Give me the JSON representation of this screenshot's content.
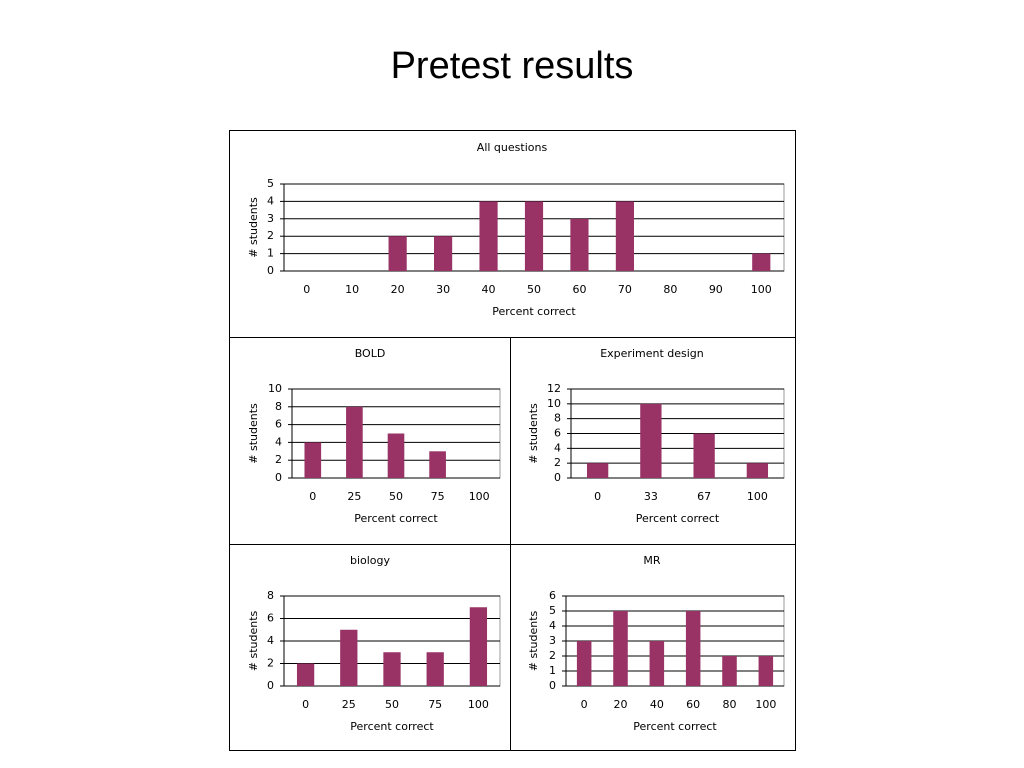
{
  "title": "Pretest results",
  "chart_data": [
    {
      "type": "bar",
      "title": "All questions",
      "xlabel": "Percent correct",
      "ylabel": "# students",
      "categories": [
        "0",
        "10",
        "20",
        "30",
        "40",
        "50",
        "60",
        "70",
        "80",
        "90",
        "100"
      ],
      "values": [
        0,
        0,
        2,
        2,
        4,
        4,
        3,
        4,
        0,
        0,
        1
      ],
      "color": "#993366",
      "ylim": [
        0,
        5
      ],
      "yticks": [
        0,
        1,
        2,
        3,
        4,
        5
      ],
      "grid": true
    },
    {
      "type": "bar",
      "title": "BOLD",
      "xlabel": "Percent correct",
      "ylabel": "# students",
      "categories": [
        "0",
        "25",
        "50",
        "75",
        "100"
      ],
      "values": [
        4,
        8,
        5,
        3,
        0
      ],
      "color": "#993366",
      "ylim": [
        0,
        10
      ],
      "yticks": [
        0,
        2,
        4,
        6,
        8,
        10
      ],
      "grid": true
    },
    {
      "type": "bar",
      "title": "Experiment design",
      "xlabel": "Percent correct",
      "ylabel": "# students",
      "categories": [
        "0",
        "33",
        "67",
        "100"
      ],
      "values": [
        2,
        10,
        6,
        2
      ],
      "color": "#993366",
      "ylim": [
        0,
        12
      ],
      "yticks": [
        0,
        2,
        4,
        6,
        8,
        10,
        12
      ],
      "grid": true
    },
    {
      "type": "bar",
      "title": "biology",
      "xlabel": "Percent correct",
      "ylabel": "# students",
      "categories": [
        "0",
        "25",
        "50",
        "75",
        "100"
      ],
      "values": [
        2,
        5,
        3,
        3,
        7
      ],
      "color": "#993366",
      "ylim": [
        0,
        8
      ],
      "yticks": [
        0,
        2,
        4,
        6,
        8
      ],
      "grid": true
    },
    {
      "type": "bar",
      "title": "MR",
      "xlabel": "Percent correct",
      "ylabel": "# students",
      "categories": [
        "0",
        "20",
        "40",
        "60",
        "80",
        "100"
      ],
      "values": [
        3,
        5,
        3,
        5,
        2,
        2
      ],
      "color": "#993366",
      "ylim": [
        0,
        6
      ],
      "yticks": [
        0,
        1,
        2,
        3,
        4,
        5,
        6
      ],
      "grid": true
    }
  ]
}
